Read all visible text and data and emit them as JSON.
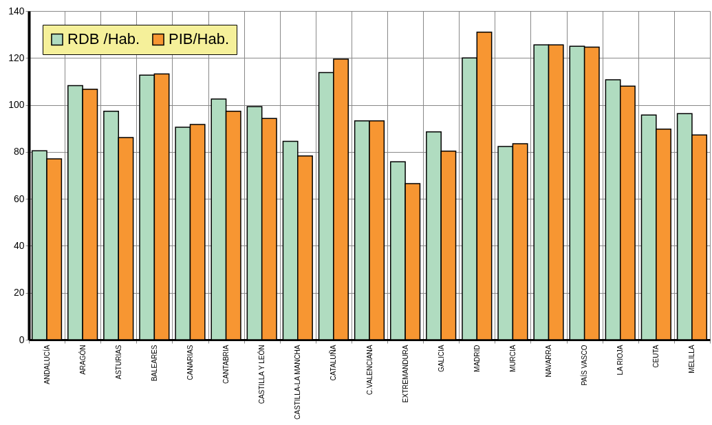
{
  "chart_data": {
    "type": "bar",
    "categories": [
      "ANDALUCÍA",
      "ARAGÓN",
      "ASTURIAS",
      "BALEARES",
      "CANARIAS",
      "CANTABRIA",
      "CASTILLA Y LEÓN",
      "CASTILLA-LA MANCHA",
      "CATALUÑA",
      "C.VALENCIANA",
      "EXTREMANDURA",
      "GALICIA",
      "MADRID",
      "MURCIA",
      "NAVARRA",
      "PAÍS VASCO",
      "LA RIOJA",
      "CEUTA",
      "MELILLA"
    ],
    "series": [
      {
        "name": "RDB /Hab.",
        "color": "#b0dcc0",
        "values": [
          80.5,
          108.2,
          97.3,
          112.7,
          90.5,
          102.5,
          99.3,
          84.5,
          113.8,
          93.2,
          75.8,
          88.5,
          120,
          82.3,
          125.6,
          125,
          110.7,
          95.7,
          96.3
        ]
      },
      {
        "name": "PIB/Hab.",
        "color": "#f79632",
        "values": [
          77,
          106.7,
          86.1,
          113.2,
          91.7,
          97.3,
          94.2,
          78.3,
          119.5,
          93.2,
          66.5,
          80.3,
          131,
          83.5,
          125.6,
          124.6,
          108,
          89.7,
          87.2
        ]
      }
    ],
    "ylim": [
      0,
      140
    ],
    "yticks": [
      0,
      20,
      40,
      60,
      80,
      100,
      120,
      140
    ],
    "grid": true,
    "legend": "top left"
  }
}
